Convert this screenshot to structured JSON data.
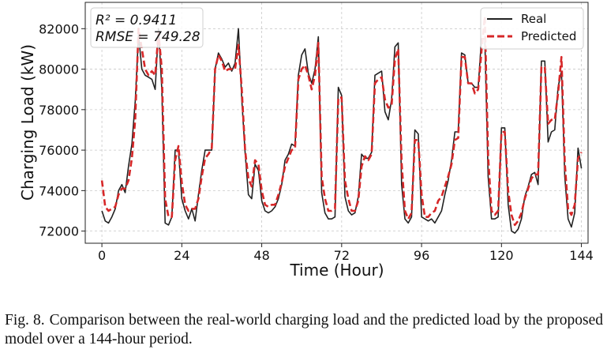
{
  "chart_data": {
    "type": "line",
    "title": "",
    "xlabel": "Time (Hour)",
    "ylabel": "Charging Load (kW)",
    "xlim": [
      -5,
      146
    ],
    "ylim": [
      71400,
      83300
    ],
    "xticks": [
      0,
      24,
      48,
      72,
      96,
      120,
      144
    ],
    "yticks": [
      72000,
      74000,
      76000,
      78000,
      80000,
      82000
    ],
    "grid": true,
    "legend_position": "top-right",
    "stats": {
      "r2": "R² = 0.9411",
      "rmse": "RMSE = 749.28"
    },
    "series": [
      {
        "name": "Real",
        "color": "#222222",
        "style": "solid",
        "values": [
          73000,
          72500,
          72400,
          72700,
          73100,
          74000,
          74300,
          73900,
          75200,
          76300,
          78400,
          81700,
          80000,
          79700,
          79600,
          79500,
          79000,
          82000,
          79000,
          72400,
          72300,
          72700,
          76000,
          76000,
          73600,
          73000,
          72600,
          73100,
          72500,
          73800,
          75000,
          76000,
          76000,
          76000,
          80000,
          80800,
          80500,
          80100,
          80300,
          79900,
          80300,
          82000,
          78500,
          75900,
          73800,
          73600,
          75300,
          75000,
          73500,
          73000,
          72900,
          73000,
          73200,
          73600,
          74300,
          75500,
          75800,
          76300,
          76200,
          79700,
          80700,
          81000,
          79800,
          79300,
          80000,
          81600,
          73900,
          72900,
          72600,
          72600,
          72700,
          79100,
          78700,
          73700,
          73000,
          72800,
          72900,
          73700,
          75800,
          75600,
          75600,
          75900,
          79700,
          79800,
          79900,
          77900,
          77500,
          78500,
          81100,
          81300,
          74300,
          72600,
          72400,
          72700,
          77000,
          76800,
          72700,
          72600,
          72500,
          72600,
          72400,
          72700,
          73000,
          73800,
          74500,
          75500,
          76900,
          76900,
          80800,
          80700,
          79300,
          79300,
          79100,
          79100,
          81500,
          81500,
          74700,
          72600,
          72600,
          72700,
          77100,
          77100,
          73300,
          72000,
          71900,
          72100,
          72600,
          73700,
          74200,
          74800,
          74900,
          74300,
          80400,
          80400,
          76400,
          76900,
          77000,
          79100,
          79900,
          74700,
          72600,
          72200,
          72900,
          76100,
          75100
        ]
      },
      {
        "name": "Predicted",
        "color": "#d62728",
        "style": "dashed",
        "values": [
          74500,
          73200,
          73000,
          73100,
          73200,
          73800,
          74100,
          74100,
          74500,
          75600,
          77500,
          82000,
          81000,
          80000,
          79700,
          79900,
          79700,
          81800,
          80000,
          73600,
          72700,
          72700,
          75500,
          76200,
          74400,
          73300,
          73000,
          73100,
          73100,
          73600,
          74700,
          75600,
          75800,
          76100,
          80000,
          80700,
          80400,
          79900,
          80000,
          80000,
          80000,
          81200,
          79000,
          76000,
          74600,
          74200,
          75500,
          75300,
          74000,
          73300,
          73200,
          73300,
          73300,
          73800,
          74400,
          75200,
          75600,
          76000,
          76100,
          79500,
          80000,
          80200,
          79700,
          79000,
          79700,
          81300,
          74700,
          73600,
          73000,
          73000,
          73100,
          78600,
          78600,
          74500,
          73600,
          73000,
          73000,
          73500,
          75200,
          75700,
          75500,
          75800,
          79300,
          79500,
          79600,
          78500,
          78100,
          78200,
          80500,
          81000,
          75400,
          73000,
          72600,
          72900,
          76500,
          76500,
          73800,
          72700,
          72700,
          72900,
          73000,
          73500,
          73700,
          74200,
          74700,
          75300,
          76500,
          76600,
          80600,
          80600,
          79300,
          79300,
          78800,
          79000,
          80900,
          82600,
          75700,
          73000,
          72800,
          73000,
          76900,
          76900,
          74000,
          72800,
          72300,
          72500,
          72900,
          73600,
          74100,
          74600,
          74800,
          74800,
          80100,
          80100,
          77300,
          77500,
          77500,
          78800,
          80600,
          75400,
          73100,
          72800,
          73300,
          75600,
          75900
        ]
      }
    ]
  },
  "caption": {
    "label": "Fig. 8.",
    "text": "Comparison between the real-world charging load and the predicted load by the proposed model over a 144-hour period."
  }
}
